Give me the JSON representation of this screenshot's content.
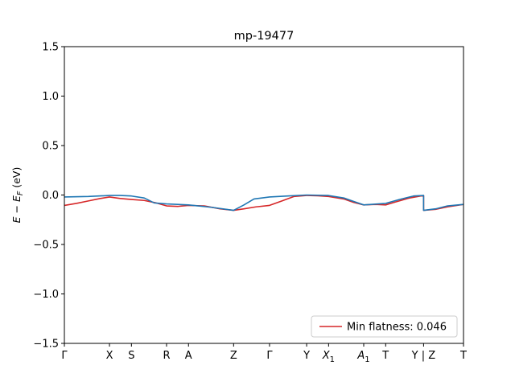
{
  "chart_data": {
    "type": "line",
    "title": "mp-19477",
    "ylabel_parts": [
      "E",
      " − ",
      "E",
      "F",
      " (eV)"
    ],
    "ylim": [
      -1.5,
      1.5
    ],
    "yticks": [
      1.5,
      1.0,
      0.5,
      0.0,
      -0.5,
      -1.0,
      -1.5
    ],
    "ytick_labels": [
      "1.5",
      "1.0",
      "0.5",
      "0.0",
      "−0.5",
      "−1.0",
      "−1.5"
    ],
    "xlim": [
      0,
      1
    ],
    "kpoints": [
      {
        "label": "Γ",
        "sub": "",
        "x": 0.0
      },
      {
        "label": "X",
        "sub": "",
        "x": 0.113
      },
      {
        "label": "S",
        "sub": "",
        "x": 0.168
      },
      {
        "label": "R",
        "sub": "",
        "x": 0.256
      },
      {
        "label": "A",
        "sub": "",
        "x": 0.311
      },
      {
        "label": "Z",
        "sub": "",
        "x": 0.424
      },
      {
        "label": "Γ",
        "sub": "",
        "x": 0.514
      },
      {
        "label": "Y",
        "sub": "",
        "x": 0.607
      },
      {
        "label": "X",
        "sub": "1",
        "x": 0.662
      },
      {
        "label": "A",
        "sub": "1",
        "x": 0.75
      },
      {
        "label": "T",
        "sub": "",
        "x": 0.805
      },
      {
        "label": "Y | Z",
        "sub": "",
        "x": 0.9
      },
      {
        "label": "T",
        "sub": "",
        "x": 1.0
      }
    ],
    "series": [
      {
        "name": "Min flatness: 0.046",
        "color": "#d62728",
        "in_legend": true,
        "points": [
          [
            0.0,
            -0.105
          ],
          [
            0.03,
            -0.085
          ],
          [
            0.06,
            -0.06
          ],
          [
            0.09,
            -0.035
          ],
          [
            0.113,
            -0.02
          ],
          [
            0.14,
            -0.035
          ],
          [
            0.168,
            -0.045
          ],
          [
            0.2,
            -0.055
          ],
          [
            0.23,
            -0.08
          ],
          [
            0.256,
            -0.11
          ],
          [
            0.285,
            -0.115
          ],
          [
            0.311,
            -0.105
          ],
          [
            0.35,
            -0.11
          ],
          [
            0.39,
            -0.14
          ],
          [
            0.424,
            -0.155
          ],
          [
            0.45,
            -0.14
          ],
          [
            0.48,
            -0.12
          ],
          [
            0.514,
            -0.105
          ],
          [
            0.545,
            -0.06
          ],
          [
            0.575,
            -0.015
          ],
          [
            0.607,
            -0.005
          ],
          [
            0.635,
            -0.008
          ],
          [
            0.662,
            -0.015
          ],
          [
            0.7,
            -0.04
          ],
          [
            0.725,
            -0.075
          ],
          [
            0.75,
            -0.1
          ],
          [
            0.78,
            -0.095
          ],
          [
            0.805,
            -0.1
          ],
          [
            0.83,
            -0.07
          ],
          [
            0.865,
            -0.03
          ],
          [
            0.9,
            -0.005
          ],
          [
            0.9,
            -0.155
          ],
          [
            0.93,
            -0.145
          ],
          [
            0.96,
            -0.12
          ],
          [
            1.0,
            -0.095
          ]
        ]
      },
      {
        "name": "",
        "color": "#1f77b4",
        "in_legend": false,
        "points": [
          [
            0.0,
            -0.02
          ],
          [
            0.06,
            -0.015
          ],
          [
            0.113,
            -0.005
          ],
          [
            0.14,
            -0.005
          ],
          [
            0.168,
            -0.01
          ],
          [
            0.2,
            -0.03
          ],
          [
            0.225,
            -0.08
          ],
          [
            0.256,
            -0.09
          ],
          [
            0.311,
            -0.1
          ],
          [
            0.37,
            -0.125
          ],
          [
            0.424,
            -0.155
          ],
          [
            0.45,
            -0.1
          ],
          [
            0.475,
            -0.04
          ],
          [
            0.514,
            -0.02
          ],
          [
            0.56,
            -0.01
          ],
          [
            0.607,
            0.0
          ],
          [
            0.662,
            -0.005
          ],
          [
            0.7,
            -0.03
          ],
          [
            0.725,
            -0.065
          ],
          [
            0.75,
            -0.1
          ],
          [
            0.805,
            -0.085
          ],
          [
            0.84,
            -0.045
          ],
          [
            0.875,
            -0.01
          ],
          [
            0.9,
            -0.005
          ],
          [
            0.9,
            -0.155
          ],
          [
            0.93,
            -0.14
          ],
          [
            0.96,
            -0.11
          ],
          [
            1.0,
            -0.095
          ]
        ]
      }
    ],
    "legend_position": "lower-right",
    "grid": false
  }
}
